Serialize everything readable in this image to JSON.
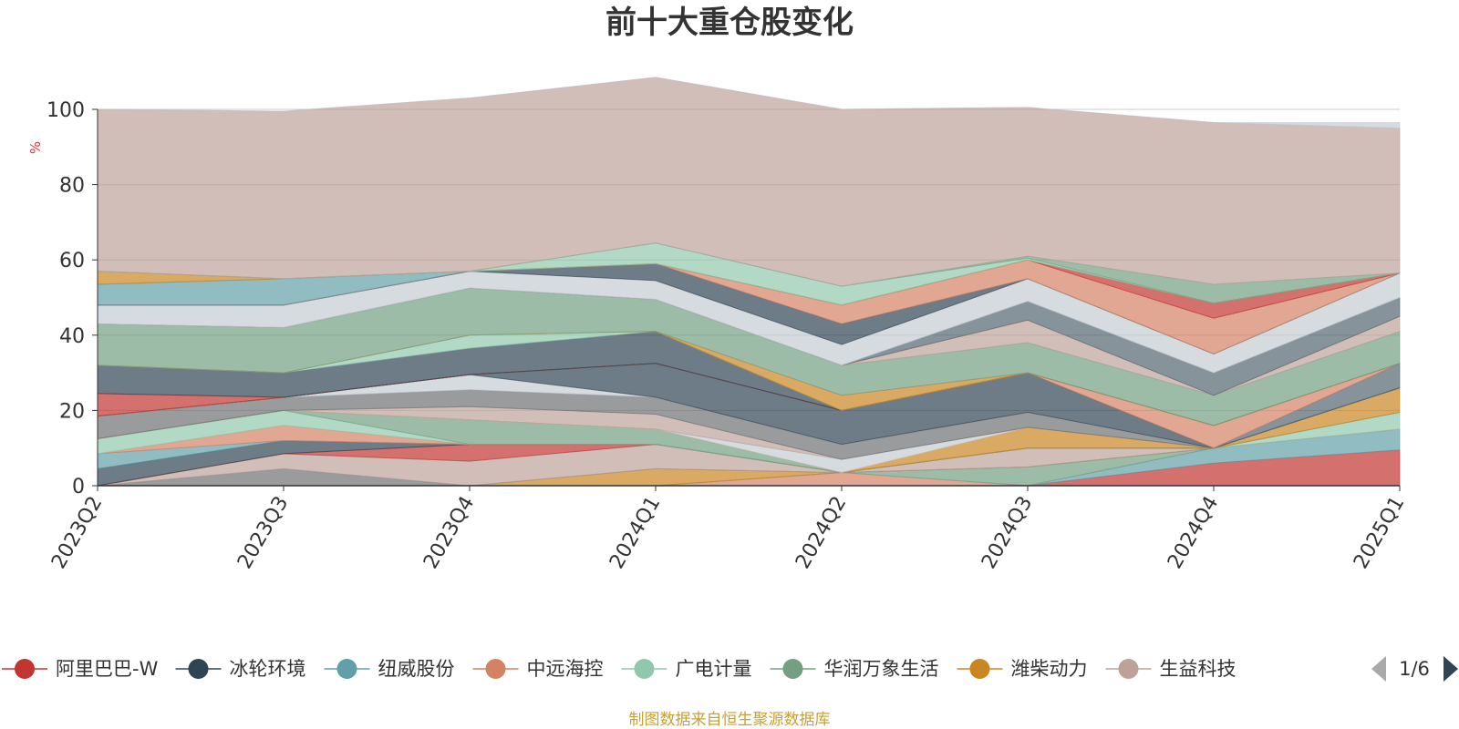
{
  "chart_data": {
    "type": "area",
    "stacked": true,
    "title": "前十大重仓股变化",
    "ylabel": "%",
    "ylim": [
      0,
      100
    ],
    "yticks": [
      0,
      20,
      40,
      60,
      80,
      100
    ],
    "grid": true,
    "categories": [
      "2023Q2",
      "2023Q3",
      "2023Q4",
      "2024Q1",
      "2024Q2",
      "2024Q3",
      "2024Q4",
      "2025Q1"
    ],
    "series": [
      {
        "name": "阿里巴巴-W",
        "color": "#c23531",
        "values": [
          0,
          0,
          0,
          0,
          0,
          0,
          6,
          9.5
        ]
      },
      {
        "name": "冰轮环境",
        "color": "#2f4554",
        "values": [
          0,
          0,
          0,
          0,
          0,
          0,
          0,
          0
        ]
      },
      {
        "name": "纽威股份",
        "color": "#61a0a8",
        "values": [
          0,
          0,
          0,
          0,
          0,
          0,
          4,
          5.5
        ]
      },
      {
        "name": "中远海控",
        "color": "#d48265",
        "values": [
          0,
          0,
          0,
          0,
          3.5,
          0,
          0,
          0
        ]
      },
      {
        "name": "广电计量",
        "color": "#91c7ae",
        "values": [
          0,
          0,
          0,
          0,
          0,
          0,
          0,
          4.5
        ]
      },
      {
        "name": "华润万象生活",
        "color": "#749f83",
        "values": [
          0,
          0,
          0,
          0,
          0,
          5,
          0,
          0
        ]
      },
      {
        "name": "潍柴动力",
        "color": "#ca8622",
        "values": [
          0,
          0,
          0,
          4.5,
          0,
          0,
          0,
          6.5
        ]
      },
      {
        "name": "生益科技",
        "color": "#bda29a",
        "values": [
          0,
          0,
          0,
          0,
          0,
          0,
          0,
          0
        ]
      },
      {
        "name": "",
        "color": "#6e7074",
        "values": [
          0,
          4.5,
          0,
          0,
          0,
          0,
          0,
          0
        ]
      },
      {
        "name": "",
        "color": "#bda29a",
        "values": [
          0,
          4,
          6.5,
          6.5,
          0,
          5,
          0,
          0
        ]
      },
      {
        "name": "",
        "color": "#c23531",
        "values": [
          0,
          0,
          4.5,
          0,
          0,
          0,
          0,
          0
        ]
      },
      {
        "name": "",
        "color": "#2f4554",
        "values": [
          4.5,
          3.5,
          0,
          0,
          0,
          0,
          0,
          0
        ]
      },
      {
        "name": "",
        "color": "#61a0a8",
        "values": [
          4,
          0,
          0,
          0,
          0,
          0,
          0,
          0
        ]
      },
      {
        "name": "",
        "color": "#d48265",
        "values": [
          0,
          4,
          0,
          0,
          0,
          0,
          0,
          0
        ]
      },
      {
        "name": "",
        "color": "#91c7ae",
        "values": [
          4,
          4,
          0,
          0,
          0,
          0,
          0,
          0
        ]
      },
      {
        "name": "",
        "color": "#749f83",
        "values": [
          0,
          0,
          6.5,
          4,
          0,
          0,
          0,
          0
        ]
      },
      {
        "name": "",
        "color": "#ca8622",
        "values": [
          0,
          0,
          0,
          0,
          0,
          5.5,
          0,
          0
        ]
      },
      {
        "name": "",
        "color": "#c4ccd3",
        "values": [
          0,
          0,
          0,
          0,
          3.5,
          0,
          0,
          0
        ]
      },
      {
        "name": "",
        "color": "#bda29a",
        "values": [
          0,
          0,
          3.5,
          4,
          0,
          0,
          0,
          0
        ]
      },
      {
        "name": "",
        "color": "#6e7074",
        "values": [
          6,
          3.5,
          4.5,
          4.5,
          4,
          4,
          0,
          0
        ]
      },
      {
        "name": "",
        "color": "#c4ccd3",
        "values": [
          0,
          0,
          4,
          0,
          0,
          0,
          0,
          0
        ]
      },
      {
        "name": "",
        "color": "#2f4554",
        "values": [
          0,
          0,
          0,
          9,
          9,
          10.5,
          0,
          0
        ]
      },
      {
        "name": "",
        "color": "#546570",
        "values": [
          0,
          0,
          0,
          0,
          0,
          0,
          0,
          6.5
        ]
      },
      {
        "name": "",
        "color": "#d48265",
        "values": [
          0,
          0,
          0,
          0,
          0,
          0,
          6,
          0
        ]
      },
      {
        "name": "",
        "color": "#c23531",
        "values": [
          6,
          0,
          0,
          0,
          0,
          0,
          0,
          0
        ]
      },
      {
        "name": "",
        "color": "#2f4554",
        "values": [
          7.5,
          6.5,
          7,
          8.5,
          0,
          0,
          0,
          0
        ]
      },
      {
        "name": "",
        "color": "#91c7ae",
        "values": [
          0,
          0,
          3.5,
          0,
          0,
          0,
          0,
          0
        ]
      },
      {
        "name": "",
        "color": "#ca8622",
        "values": [
          0,
          0,
          0,
          0,
          4,
          0,
          0,
          0
        ]
      },
      {
        "name": "",
        "color": "#749f83",
        "values": [
          11,
          12,
          12.5,
          8.5,
          8,
          8,
          8,
          8.5
        ]
      },
      {
        "name": "",
        "color": "#bda29a",
        "values": [
          0,
          0,
          0,
          0,
          0,
          6,
          0,
          4
        ]
      },
      {
        "name": "",
        "color": "#546570",
        "values": [
          0,
          0,
          0,
          0,
          0,
          5,
          6,
          5
        ]
      },
      {
        "name": "",
        "color": "#c4ccd3",
        "values": [
          5,
          6,
          4.5,
          5,
          5.5,
          6,
          5,
          6.5
        ]
      },
      {
        "name": "",
        "color": "#2f4554",
        "values": [
          0,
          0,
          0,
          4.5,
          5.5,
          0,
          0,
          0
        ]
      },
      {
        "name": "",
        "color": "#d48265",
        "values": [
          0,
          0,
          0,
          0,
          5,
          5,
          9.5,
          0
        ]
      },
      {
        "name": "",
        "color": "#c23531",
        "values": [
          0,
          0,
          0,
          0,
          0,
          0,
          4,
          0
        ]
      },
      {
        "name": "",
        "color": "#61a0a8",
        "values": [
          5.5,
          7,
          0,
          0,
          0,
          0,
          0,
          0
        ]
      },
      {
        "name": "",
        "color": "#ca8622",
        "values": [
          3.5,
          0,
          0,
          0,
          0,
          0,
          0,
          0
        ]
      },
      {
        "name": "",
        "color": "#91c7ae",
        "values": [
          0,
          0,
          0,
          5.5,
          5,
          0.5,
          0,
          0
        ]
      },
      {
        "name": "",
        "color": "#749f83",
        "values": [
          0,
          0,
          0,
          0,
          0,
          0.5,
          5,
          0
        ]
      },
      {
        "name": "",
        "color": "#bda29a",
        "values": [
          43,
          44.5,
          46,
          44,
          47,
          39.5,
          43,
          38.5
        ]
      },
      {
        "name": "",
        "color": "#c4ccd3",
        "values": [
          0,
          0,
          0,
          0,
          0,
          0,
          0,
          1.5
        ]
      }
    ],
    "legend": {
      "position": "bottom",
      "items": [
        {
          "name": "阿里巴巴-W",
          "color": "#c23531"
        },
        {
          "name": "冰轮环境",
          "color": "#2f4554"
        },
        {
          "name": "纽威股份",
          "color": "#61a0a8"
        },
        {
          "name": "中远海控",
          "color": "#d48265"
        },
        {
          "name": "广电计量",
          "color": "#91c7ae"
        },
        {
          "name": "华润万象生活",
          "color": "#749f83"
        },
        {
          "name": "潍柴动力",
          "color": "#ca8622"
        },
        {
          "name": "生益科技",
          "color": "#bda29a"
        }
      ],
      "page": "1/6"
    },
    "source_note": "制图数据来自恒生聚源数据库"
  }
}
